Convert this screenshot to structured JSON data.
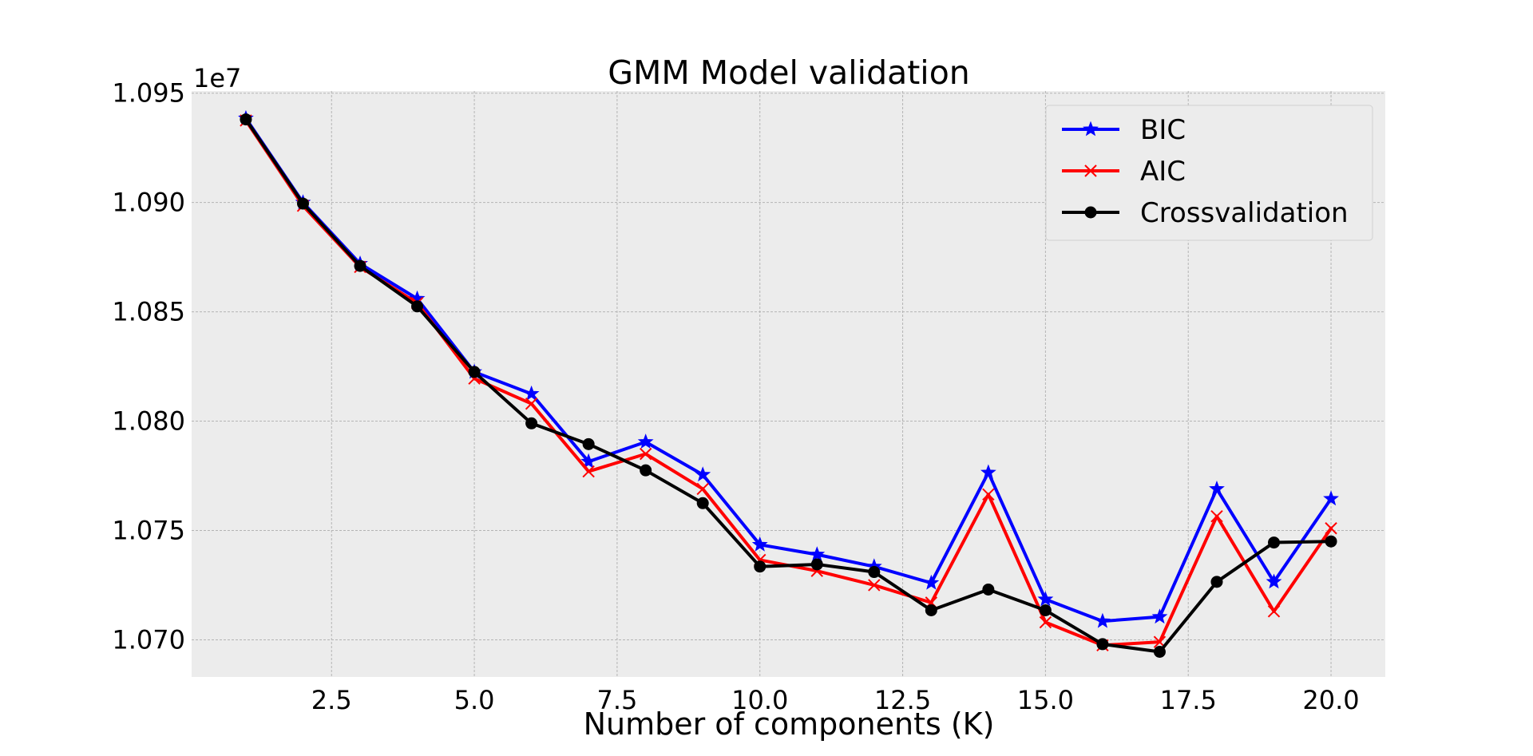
{
  "chart_data": {
    "type": "line",
    "title": "GMM Model validation",
    "xlabel": "Number of components (K)",
    "ylabel": "",
    "y_offset_label": "1e7",
    "xlim": [
      0.05,
      20.95
    ],
    "ylim": [
      10683000,
      10951000
    ],
    "xticks": [
      2.5,
      5.0,
      7.5,
      10.0,
      12.5,
      15.0,
      17.5,
      20.0
    ],
    "xtick_labels": [
      "2.5",
      "5.0",
      "7.5",
      "10.0",
      "12.5",
      "15.0",
      "17.5",
      "20.0"
    ],
    "yticks": [
      10700000,
      10750000,
      10800000,
      10850000,
      10900000,
      10950000
    ],
    "ytick_labels": [
      "1.070",
      "1.075",
      "1.080",
      "1.085",
      "1.090",
      "1.095"
    ],
    "grid": true,
    "legend_position": "top-right",
    "background": "#ececec",
    "x": [
      1,
      2,
      3,
      4,
      5,
      6,
      7,
      8,
      9,
      10,
      11,
      12,
      13,
      14,
      15,
      16,
      17,
      18,
      19,
      20
    ],
    "series": [
      {
        "name": "BIC",
        "color": "#0000ff",
        "marker": "star",
        "values": [
          10938500,
          10900000,
          10872000,
          10856000,
          10822500,
          10812500,
          10781500,
          10790500,
          10775500,
          10743500,
          10739000,
          10733500,
          10726000,
          10776500,
          10718500,
          10708500,
          10710500,
          10769000,
          10726500,
          10764500
        ]
      },
      {
        "name": "AIC",
        "color": "#ff0000",
        "marker": "x",
        "values": [
          10937500,
          10898500,
          10870500,
          10854000,
          10819500,
          10808000,
          10777000,
          10785000,
          10769000,
          10736500,
          10731500,
          10725000,
          10717000,
          10766500,
          10708000,
          10697500,
          10699000,
          10756500,
          10713000,
          10751000
        ]
      },
      {
        "name": "Crossvalidation",
        "color": "#000000",
        "marker": "circle",
        "values": [
          10938000,
          10899500,
          10871000,
          10852500,
          10822500,
          10799000,
          10789500,
          10777500,
          10762500,
          10733500,
          10734500,
          10731000,
          10713500,
          10723000,
          10713500,
          10698000,
          10694500,
          10726500,
          10744500,
          10745000
        ]
      }
    ]
  }
}
